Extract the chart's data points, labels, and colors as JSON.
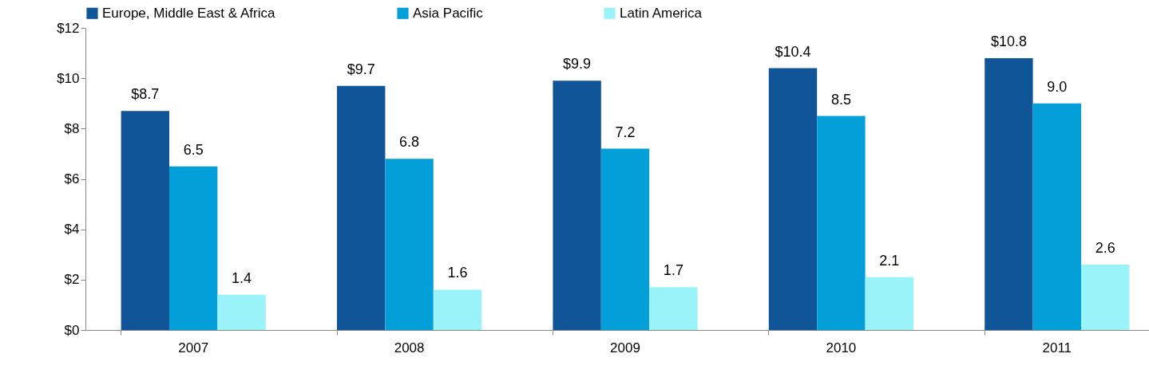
{
  "chart_data": {
    "type": "bar",
    "categories": [
      "2007",
      "2008",
      "2009",
      "2010",
      "2011"
    ],
    "series": [
      {
        "name": "Europe, Middle East & Africa",
        "color": "#0f5597",
        "values": [
          8.7,
          9.7,
          9.9,
          10.4,
          10.8
        ],
        "value_labels": [
          "$8.7",
          "$9.7",
          "$9.9",
          "$10.4",
          "$10.8"
        ]
      },
      {
        "name": "Asia Pacific",
        "color": "#039fd9",
        "values": [
          6.5,
          6.8,
          7.2,
          8.5,
          9.0
        ],
        "value_labels": [
          "6.5",
          "6.8",
          "7.2",
          "8.5",
          "9.0"
        ]
      },
      {
        "name": "Latin America",
        "color": "#99f3f9",
        "values": [
          1.4,
          1.6,
          1.7,
          2.1,
          2.6
        ],
        "value_labels": [
          "1.4",
          "1.6",
          "1.7",
          "2.1",
          "2.6"
        ]
      }
    ],
    "ylim": [
      0,
      12
    ],
    "yticks": [
      {
        "value": 0,
        "label": "$0"
      },
      {
        "value": 2,
        "label": "$2"
      },
      {
        "value": 4,
        "label": "$4"
      },
      {
        "value": 6,
        "label": "$6"
      },
      {
        "value": 8,
        "label": "$8"
      },
      {
        "value": 10,
        "label": "$10"
      },
      {
        "value": 12,
        "label": "$12"
      }
    ],
    "grid": false,
    "legend": "top"
  }
}
